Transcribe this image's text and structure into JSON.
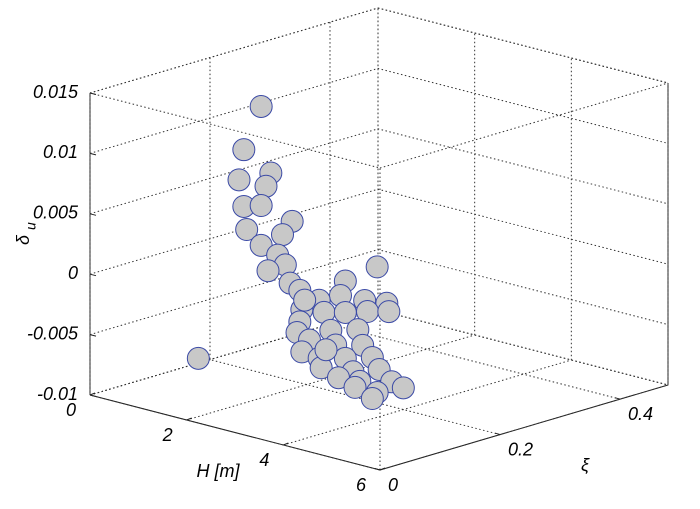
{
  "chart_data": {
    "type": "scatter3d",
    "xlabel": "H [m]",
    "ylabel": "ξ",
    "zlabel": "δ",
    "zlabel_sub": "u",
    "xlim": [
      0,
      6
    ],
    "ylim": [
      0,
      0.48
    ],
    "zlim": [
      -0.01,
      0.015
    ],
    "xticks": [
      0,
      2,
      4,
      6
    ],
    "yticks": [
      0,
      0.2,
      0.4
    ],
    "zticks": [
      -0.01,
      -0.005,
      0,
      0.005,
      0.01,
      0.015
    ],
    "grid": true,
    "color": "#c8c8c8",
    "edgecolor": "#3b4aa6",
    "x": [
      2.3,
      0.7,
      2.5,
      0.6,
      2.4,
      0.7,
      2.3,
      1.7,
      2.0,
      1.5,
      2.3,
      1.4,
      2.8,
      1.2,
      4.7,
      1.0,
      2.9,
      2.8,
      3.1,
      2.7,
      3.5,
      3.2,
      4.9,
      1.9,
      3.6,
      2.8,
      4.5,
      3.7,
      3.1,
      2.5,
      4.3,
      1.8,
      3.3,
      2.6,
      4.4,
      1.9,
      3.5,
      2.8,
      4.6,
      2.3,
      4.2,
      3.5,
      3.9,
      3.1,
      5.0,
      3.0,
      4.7,
      4.0,
      4.6,
      2.4,
      3.2
    ],
    "y": [
      0.1,
      0.2,
      0.1,
      0.2,
      0.1,
      0.2,
      0.1,
      0.2,
      0.1,
      0.2,
      0.1,
      0.2,
      0.1,
      0.2,
      0.1,
      0.1,
      0.1,
      0.2,
      0.1,
      0.2,
      0.1,
      0.2,
      0.1,
      0.2,
      0.1,
      0.2,
      0.1,
      0.2,
      0.1,
      0.2,
      0.1,
      0.2,
      0.1,
      0.2,
      0.1,
      0.2,
      0.1,
      0.2,
      0.1,
      0.2,
      0.1,
      0.2,
      0.1,
      0.2,
      0.1,
      0.2,
      0.1,
      0.2,
      0.1,
      0.2,
      0.1
    ],
    "z": [
      0.0148,
      0.0081,
      0.0095,
      0.0055,
      0.0083,
      0.0034,
      0.0066,
      0.0032,
      0.0043,
      0.0019,
      0.0033,
      0.0001,
      0.0022,
      -0.0014,
      0.004,
      -0.0074,
      0.0008,
      -0.0006,
      0.0004,
      -0.0019,
      0,
      -0.0018,
      0.0012,
      -0.0039,
      -0.0009,
      -0.0032,
      0.0001,
      -0.0022,
      -0.0022,
      -0.005,
      -0.0016,
      -0.0059,
      -0.0035,
      -0.0061,
      -0.0028,
      -0.0074,
      -0.0048,
      -0.007,
      -0.0036,
      -0.0083,
      -0.0052,
      -0.0072,
      -0.006,
      -0.0086,
      -0.0052,
      -0.0092,
      -0.0064,
      -0.0082,
      -0.007,
      -0.0067,
      -0.0003
    ]
  }
}
